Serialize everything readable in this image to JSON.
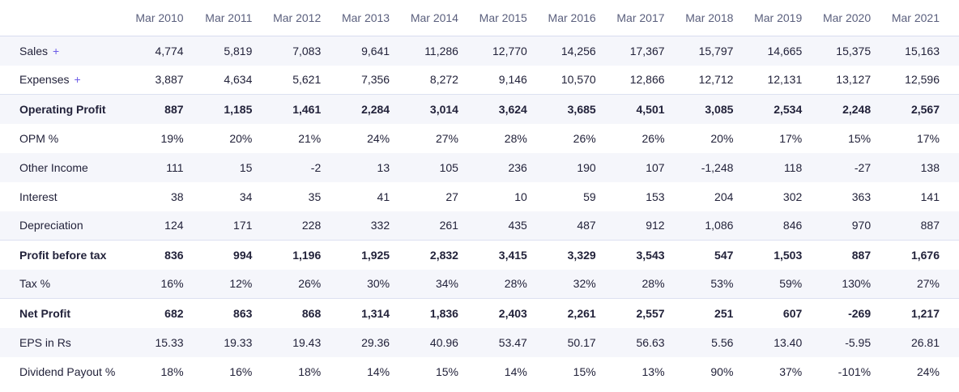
{
  "table": {
    "columns": [
      "Mar 2010",
      "Mar 2011",
      "Mar 2012",
      "Mar 2013",
      "Mar 2014",
      "Mar 2015",
      "Mar 2016",
      "Mar 2017",
      "Mar 2018",
      "Mar 2019",
      "Mar 2020",
      "Mar 2021"
    ],
    "expand_symbol": "+",
    "rows": [
      {
        "label": "Sales",
        "values": [
          "4,774",
          "5,819",
          "7,083",
          "9,641",
          "11,286",
          "12,770",
          "14,256",
          "17,367",
          "15,797",
          "14,665",
          "15,375",
          "15,163"
        ]
      },
      {
        "label": "Expenses",
        "values": [
          "3,887",
          "4,634",
          "5,621",
          "7,356",
          "8,272",
          "9,146",
          "10,570",
          "12,866",
          "12,712",
          "12,131",
          "13,127",
          "12,596"
        ]
      },
      {
        "label": "Operating Profit",
        "values": [
          "887",
          "1,185",
          "1,461",
          "2,284",
          "3,014",
          "3,624",
          "3,685",
          "4,501",
          "3,085",
          "2,534",
          "2,248",
          "2,567"
        ]
      },
      {
        "label": "OPM %",
        "values": [
          "19%",
          "20%",
          "21%",
          "24%",
          "27%",
          "28%",
          "26%",
          "26%",
          "20%",
          "17%",
          "15%",
          "17%"
        ]
      },
      {
        "label": "Other Income",
        "values": [
          "111",
          "15",
          "-2",
          "13",
          "105",
          "236",
          "190",
          "107",
          "-1,248",
          "118",
          "-27",
          "138"
        ]
      },
      {
        "label": "Interest",
        "values": [
          "38",
          "34",
          "35",
          "41",
          "27",
          "10",
          "59",
          "153",
          "204",
          "302",
          "363",
          "141"
        ]
      },
      {
        "label": "Depreciation",
        "values": [
          "124",
          "171",
          "228",
          "332",
          "261",
          "435",
          "487",
          "912",
          "1,086",
          "846",
          "970",
          "887"
        ]
      },
      {
        "label": "Profit before tax",
        "values": [
          "836",
          "994",
          "1,196",
          "1,925",
          "2,832",
          "3,415",
          "3,329",
          "3,543",
          "547",
          "1,503",
          "887",
          "1,676"
        ]
      },
      {
        "label": "Tax %",
        "values": [
          "16%",
          "12%",
          "26%",
          "30%",
          "34%",
          "28%",
          "32%",
          "28%",
          "53%",
          "59%",
          "130%",
          "27%"
        ]
      },
      {
        "label": "Net Profit",
        "values": [
          "682",
          "863",
          "868",
          "1,314",
          "1,836",
          "2,403",
          "2,261",
          "2,557",
          "251",
          "607",
          "-269",
          "1,217"
        ]
      },
      {
        "label": "EPS in Rs",
        "values": [
          "15.33",
          "19.33",
          "19.43",
          "29.36",
          "40.96",
          "53.47",
          "50.17",
          "56.63",
          "5.56",
          "13.40",
          "-5.95",
          "26.81"
        ]
      },
      {
        "label": "Dividend Payout %",
        "values": [
          "18%",
          "16%",
          "18%",
          "14%",
          "15%",
          "14%",
          "15%",
          "13%",
          "90%",
          "37%",
          "-101%",
          "24%"
        ]
      }
    ]
  }
}
